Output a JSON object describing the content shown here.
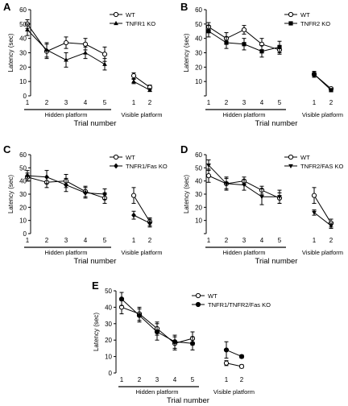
{
  "chart_data": [
    {
      "panel": "A",
      "type": "line",
      "ylabel": "Latency (sec)",
      "ylim": [
        0,
        60
      ],
      "yticks": [
        0,
        10,
        20,
        30,
        40,
        50,
        60
      ],
      "xlabel": "Trial number",
      "groups": [
        {
          "label": "Hidden platform",
          "ticks": [
            "1",
            "2",
            "3",
            "4",
            "5"
          ]
        },
        {
          "label": "Visible platform",
          "ticks": [
            "1",
            "2"
          ]
        }
      ],
      "series": [
        {
          "name": "WT",
          "marker": "open-circle",
          "hidden": [
            50,
            31,
            37,
            36,
            29
          ],
          "hidden_err": [
            3,
            5,
            4,
            4,
            5
          ],
          "visible": [
            14,
            6
          ],
          "visible_err": [
            2,
            1.5
          ]
        },
        {
          "name": "TNFR1 KO",
          "marker": "filled-triangle",
          "hidden": [
            46,
            32,
            25,
            30,
            22
          ],
          "hidden_err": [
            4,
            5,
            5,
            4,
            4
          ],
          "visible": [
            10,
            4
          ],
          "visible_err": [
            1.5,
            1
          ]
        }
      ]
    },
    {
      "panel": "B",
      "type": "line",
      "ylabel": "Latency (sec)",
      "ylim": [
        0,
        60
      ],
      "yticks": [
        0,
        10,
        20,
        30,
        40,
        50,
        60
      ],
      "xlabel": "Trial number",
      "groups": [
        {
          "label": "Hidden platform",
          "ticks": [
            "1",
            "2",
            "3",
            "4",
            "5"
          ]
        },
        {
          "label": "Visible platform",
          "ticks": [
            "1",
            "2"
          ]
        }
      ],
      "series": [
        {
          "name": "WT",
          "marker": "open-circle",
          "hidden": [
            48,
            40,
            46,
            36,
            32
          ],
          "hidden_err": [
            3,
            4,
            3,
            4,
            3
          ],
          "visible": [
            15,
            5
          ],
          "visible_err": [
            2,
            1
          ]
        },
        {
          "name": "TNFR2 KO",
          "marker": "filled-square",
          "hidden": [
            45,
            37,
            36,
            31,
            34
          ],
          "hidden_err": [
            4,
            4,
            4,
            4,
            4
          ],
          "visible": [
            15,
            4
          ],
          "visible_err": [
            2,
            1
          ]
        }
      ]
    },
    {
      "panel": "C",
      "type": "line",
      "ylabel": "Latency (sec)",
      "ylim": [
        0,
        60
      ],
      "yticks": [
        0,
        10,
        20,
        30,
        40,
        50,
        60
      ],
      "xlabel": "Trial number",
      "groups": [
        {
          "label": "Hidden platform",
          "ticks": [
            "1",
            "2",
            "3",
            "4",
            "5"
          ]
        },
        {
          "label": "Visible platform",
          "ticks": [
            "1",
            "2"
          ]
        }
      ],
      "series": [
        {
          "name": "WT",
          "marker": "open-circle",
          "hidden": [
            43,
            39,
            40,
            32,
            27
          ],
          "hidden_err": [
            3,
            4,
            5,
            4,
            4
          ],
          "visible": [
            29,
            9
          ],
          "visible_err": [
            6,
            3
          ]
        },
        {
          "name": "TNFR1/Fas KO",
          "marker": "filled-diamond",
          "hidden": [
            44,
            43,
            37,
            31,
            30
          ],
          "hidden_err": [
            4,
            5,
            5,
            4,
            4
          ],
          "visible": [
            14,
            8
          ],
          "visible_err": [
            3,
            3
          ]
        }
      ]
    },
    {
      "panel": "D",
      "type": "line",
      "ylabel": "Latency (sec)",
      "ylim": [
        0,
        60
      ],
      "yticks": [
        0,
        10,
        20,
        30,
        40,
        50,
        60
      ],
      "xlabel": "Trial number",
      "groups": [
        {
          "label": "Hidden platform",
          "ticks": [
            "1",
            "2",
            "3",
            "4",
            "5"
          ]
        },
        {
          "label": "Visible platform",
          "ticks": [
            "1",
            "2"
          ]
        }
      ],
      "series": [
        {
          "name": "WT",
          "marker": "open-circle",
          "hidden": [
            44,
            38,
            40,
            33,
            27
          ],
          "hidden_err": [
            5,
            4,
            3,
            3,
            4
          ],
          "visible": [
            29,
            8
          ],
          "visible_err": [
            6,
            3
          ]
        },
        {
          "name": "TNFR2/FAS KO",
          "marker": "filled-inverted-triangle",
          "hidden": [
            52,
            38,
            37,
            28,
            28
          ],
          "hidden_err": [
            4,
            5,
            4,
            6,
            5
          ],
          "visible": [
            16,
            6
          ],
          "visible_err": [
            2,
            2
          ]
        }
      ]
    },
    {
      "panel": "E",
      "type": "line",
      "ylabel": "Latency (sec)",
      "ylim": [
        0,
        50
      ],
      "yticks": [
        0,
        10,
        20,
        30,
        40,
        50
      ],
      "xlabel": "Trial number",
      "groups": [
        {
          "label": "Hidden platform",
          "ticks": [
            "1",
            "2",
            "3",
            "4",
            "5"
          ]
        },
        {
          "label": "Visible platform",
          "ticks": [
            "1",
            "2"
          ]
        }
      ],
      "series": [
        {
          "name": "WT",
          "marker": "open-circle",
          "hidden": [
            40,
            36,
            27,
            18,
            21
          ],
          "hidden_err": [
            4,
            4,
            4,
            4,
            4
          ],
          "visible": [
            6,
            4
          ],
          "visible_err": [
            1.5,
            1
          ]
        },
        {
          "name": "TNFR1/TNFR2/Fas KO",
          "marker": "filled-circle",
          "hidden": [
            45,
            35,
            25,
            19,
            18
          ],
          "hidden_err": [
            4,
            4,
            5,
            4,
            4
          ],
          "visible": [
            14,
            10
          ],
          "visible_err": [
            5,
            1
          ]
        }
      ]
    }
  ]
}
